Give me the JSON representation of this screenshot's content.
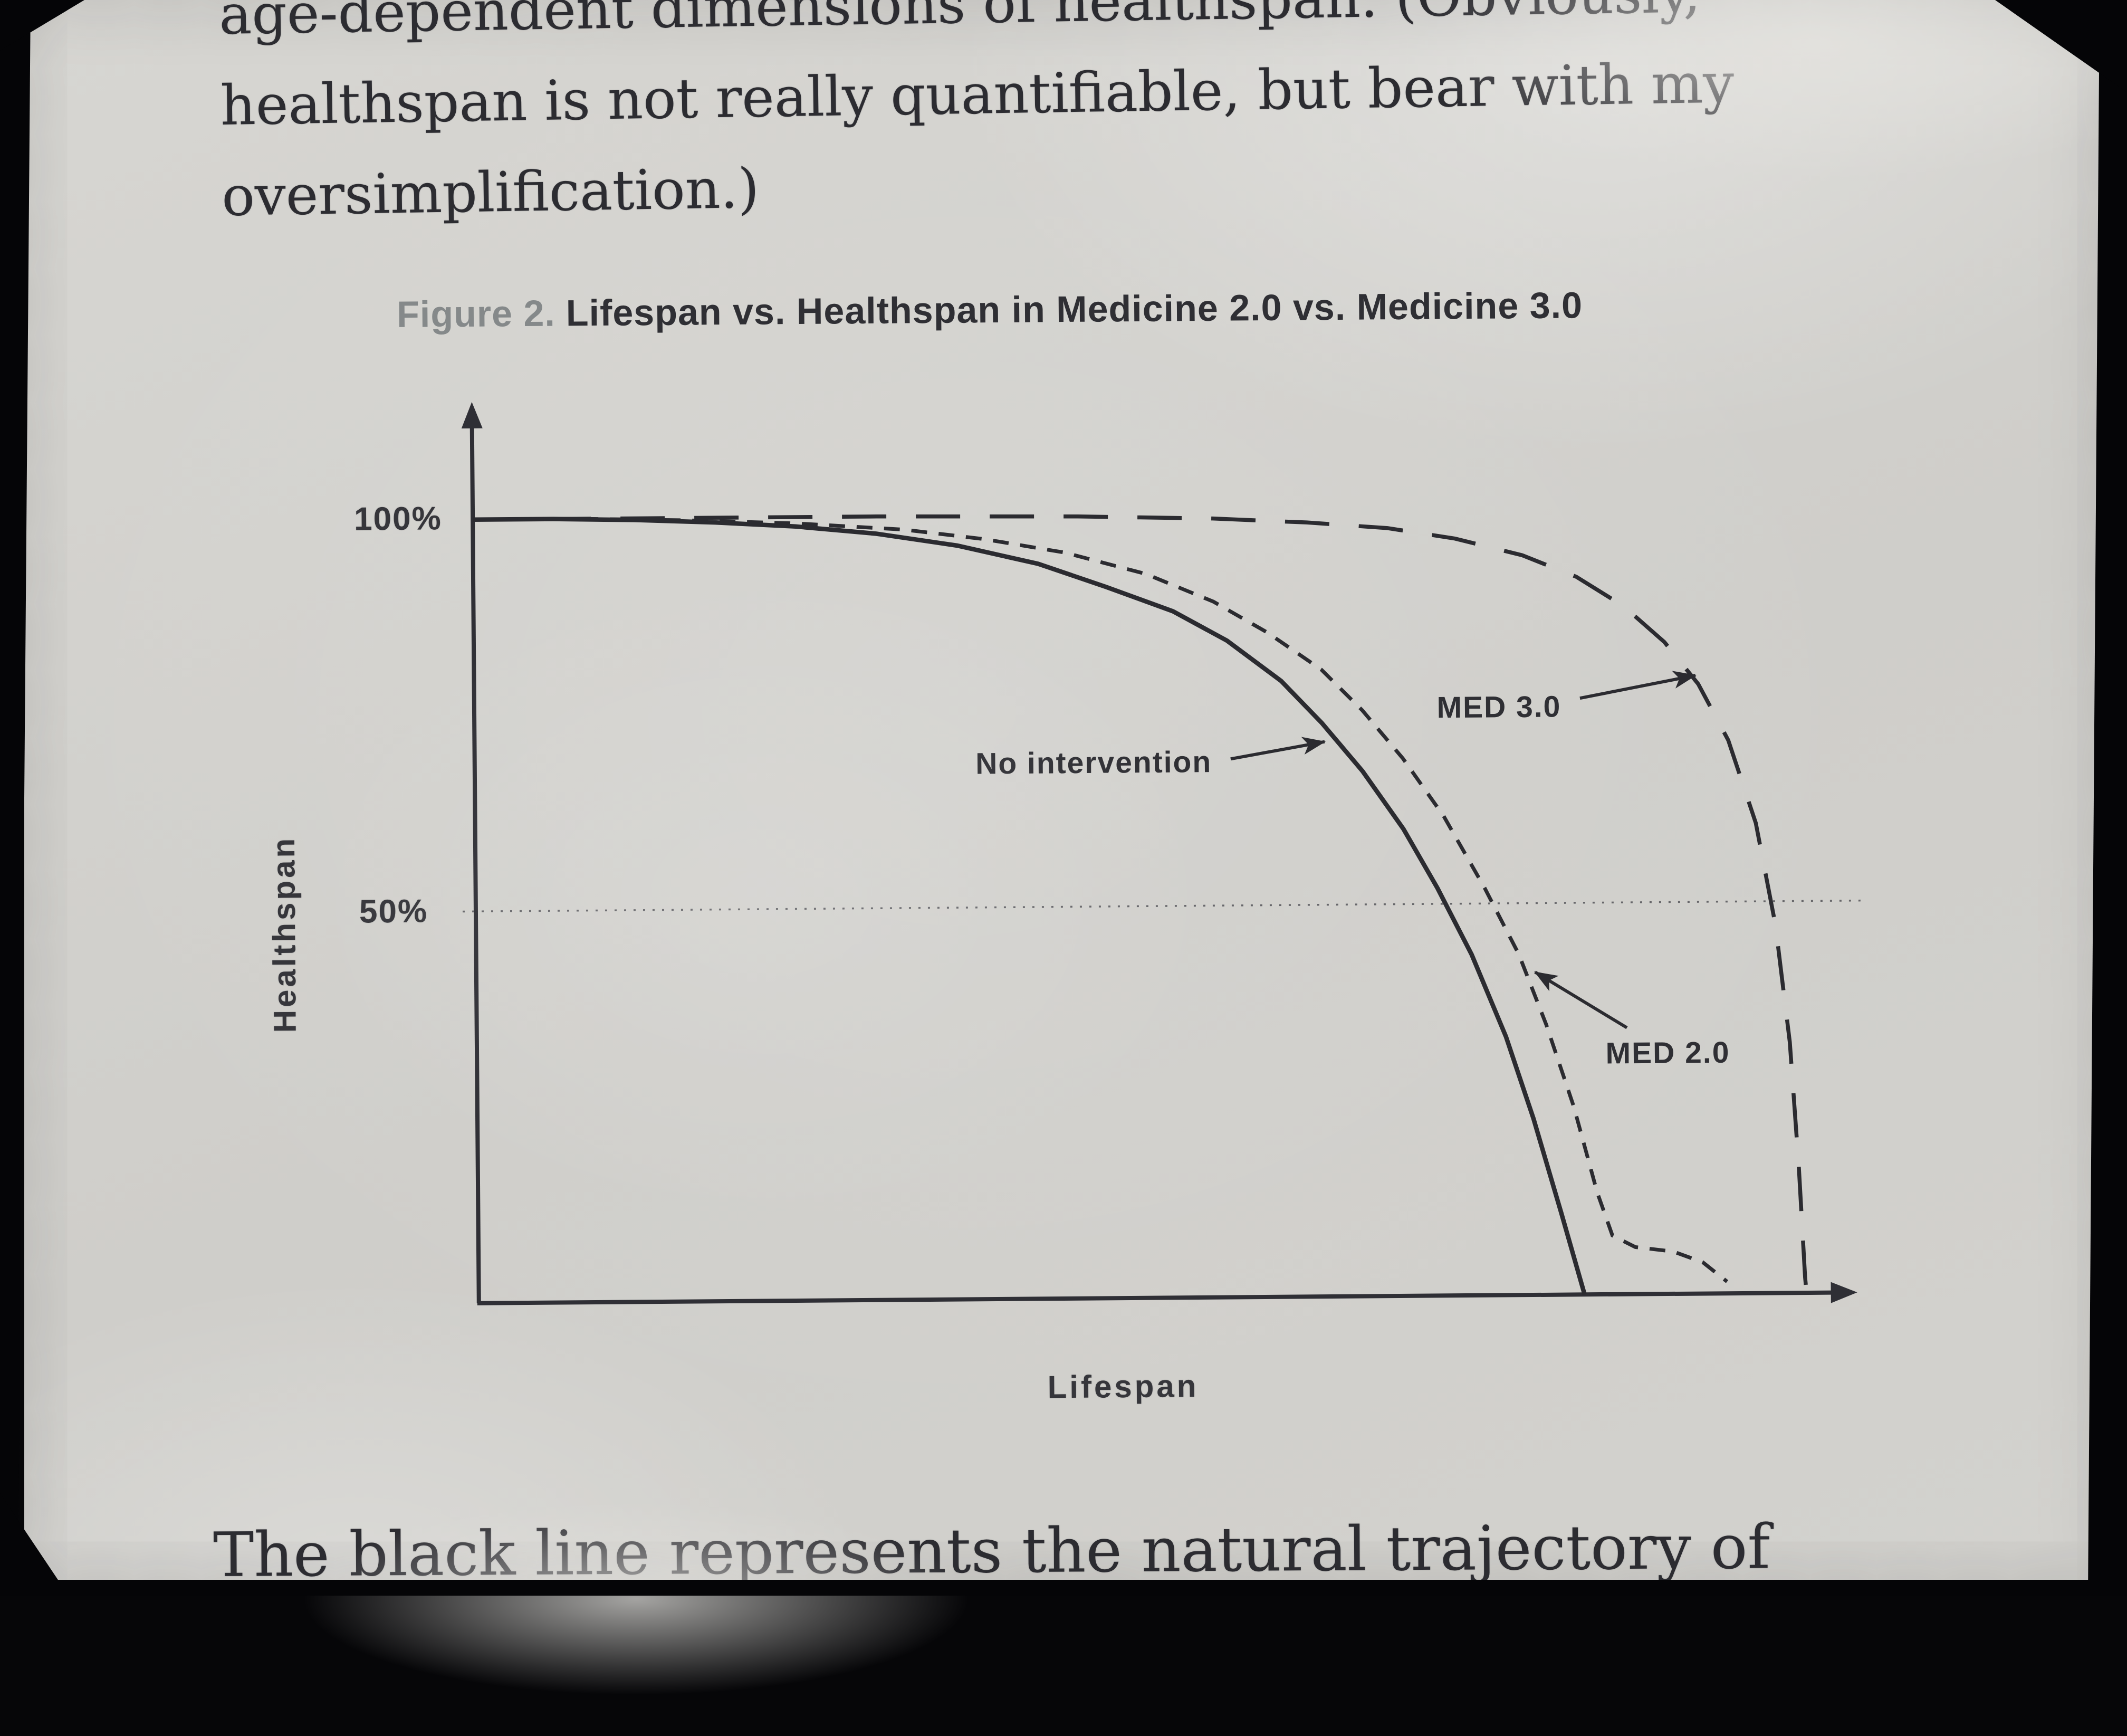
{
  "page_text": {
    "top_lines": [
      "age-dependent dimensions of healthspan. (Obviously,",
      "healthspan is not really quantifiable, but bear with my",
      "oversimplification.)"
    ],
    "bottom_line": "The black line represents the natural trajectory of"
  },
  "figure": {
    "caption_prefix": "Figure 2.",
    "caption_title": "Lifespan vs. Healthspan in Medicine 2.0 vs. Medicine 3.0"
  },
  "chart_data": {
    "type": "line",
    "title": "Figure 2. Lifespan vs. Healthspan in Medicine 2.0 vs. Medicine 3.0",
    "xlabel": "Lifespan",
    "ylabel": "Healthspan",
    "x_range": [
      0,
      100
    ],
    "y_range": [
      0,
      100
    ],
    "yticks": [
      {
        "value": 100,
        "label": "100%"
      },
      {
        "value": 50,
        "label": "50%"
      }
    ],
    "gridline_y": 50,
    "legend_position": "annotated-on-plot",
    "grid": "dotted-50-percent-line-only",
    "series": [
      {
        "name": "No intervention",
        "style": "solid",
        "points": [
          [
            0,
            100
          ],
          [
            6,
            100
          ],
          [
            12,
            99.8
          ],
          [
            18,
            99.4
          ],
          [
            24,
            98.8
          ],
          [
            30,
            97.8
          ],
          [
            36,
            96.2
          ],
          [
            42,
            93.8
          ],
          [
            47,
            90.8
          ],
          [
            52,
            87.6
          ],
          [
            56,
            83.8
          ],
          [
            60,
            78.6
          ],
          [
            63,
            73.2
          ],
          [
            66,
            67
          ],
          [
            69,
            59.6
          ],
          [
            71.5,
            52
          ],
          [
            74,
            43.5
          ],
          [
            76.5,
            33
          ],
          [
            78.5,
            22.5
          ],
          [
            80.5,
            10.5
          ],
          [
            82.2,
            0
          ]
        ]
      },
      {
        "name": "MED 2.0",
        "style": "dashed",
        "points": [
          [
            0,
            100
          ],
          [
            8,
            100
          ],
          [
            16,
            99.7
          ],
          [
            24,
            99.2
          ],
          [
            32,
            98.3
          ],
          [
            38,
            97
          ],
          [
            44,
            95.2
          ],
          [
            50,
            92.4
          ],
          [
            55,
            88.8
          ],
          [
            59,
            84.8
          ],
          [
            63,
            80
          ],
          [
            66,
            74.8
          ],
          [
            69,
            68.6
          ],
          [
            72,
            61.2
          ],
          [
            75,
            52
          ],
          [
            77.5,
            43.5
          ],
          [
            79.5,
            34.5
          ],
          [
            81.5,
            24
          ],
          [
            83.2,
            13
          ],
          [
            84.3,
            7.5
          ],
          [
            86,
            6
          ],
          [
            88.8,
            5.4
          ],
          [
            91,
            4
          ],
          [
            92.8,
            1.5
          ]
        ]
      },
      {
        "name": "MED 3.0",
        "style": "long-dash",
        "points": [
          [
            0,
            100
          ],
          [
            15,
            100
          ],
          [
            30,
            100
          ],
          [
            45,
            99.8
          ],
          [
            55,
            99.4
          ],
          [
            62,
            98.8
          ],
          [
            68,
            98
          ],
          [
            73,
            96.6
          ],
          [
            78,
            94.4
          ],
          [
            82,
            91.6
          ],
          [
            85.5,
            87.8
          ],
          [
            88.5,
            83.2
          ],
          [
            91,
            77.8
          ],
          [
            93.2,
            70.6
          ],
          [
            95.2,
            60
          ],
          [
            96.6,
            47
          ],
          [
            97.6,
            32
          ],
          [
            98.2,
            16
          ],
          [
            98.6,
            2
          ],
          [
            98.7,
            0
          ]
        ]
      }
    ],
    "annotations": [
      {
        "text": "No intervention",
        "anchor": "end",
        "label": [
          54.8,
          68.4
        ],
        "arrow": [
          56.2,
          68.7,
          63.2,
          70.8
        ]
      },
      {
        "text": "MED 3.0",
        "anchor": "end",
        "label": [
          80.8,
          75.1
        ],
        "arrow": [
          82.2,
          76.1,
          90.8,
          78.9
        ]
      },
      {
        "text": "MED 2.0",
        "anchor": "start",
        "label": [
          83.9,
          30.8
        ],
        "arrow": [
          85.5,
          34.0,
          78.7,
          41.2
        ]
      }
    ]
  },
  "colors": {
    "ink": "#2b2b30",
    "page_background": "#d3d2ce",
    "caption_gray": "#85898a"
  }
}
